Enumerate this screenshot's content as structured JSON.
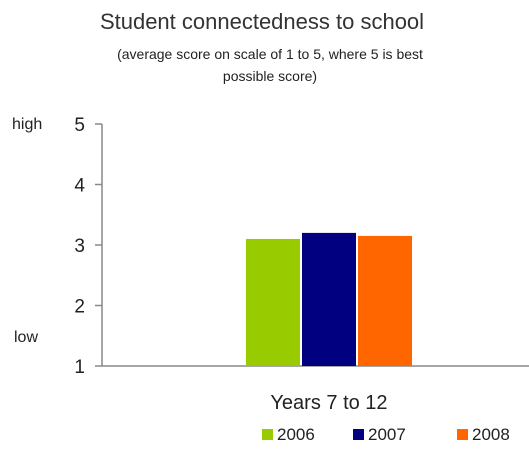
{
  "chart_data": {
    "type": "bar",
    "title": "Student connectedness to school",
    "subtitle_lines": [
      "(average score on scale of 1 to 5, where 5 is best",
      "possible score)"
    ],
    "y_high_label": "high",
    "y_low_label": "low",
    "ylim": [
      1,
      5
    ],
    "yticks": [
      "1",
      "2",
      "3",
      "4",
      "5"
    ],
    "categories": [
      "Years 7 to 12"
    ],
    "series": [
      {
        "name": "2006",
        "color": "#99cc00",
        "values": [
          3.1
        ]
      },
      {
        "name": "2007",
        "color": "#000080",
        "values": [
          3.2
        ]
      },
      {
        "name": "2008",
        "color": "#ff6600",
        "values": [
          3.15
        ]
      }
    ],
    "legend_position": "bottom-right",
    "grid": false
  }
}
